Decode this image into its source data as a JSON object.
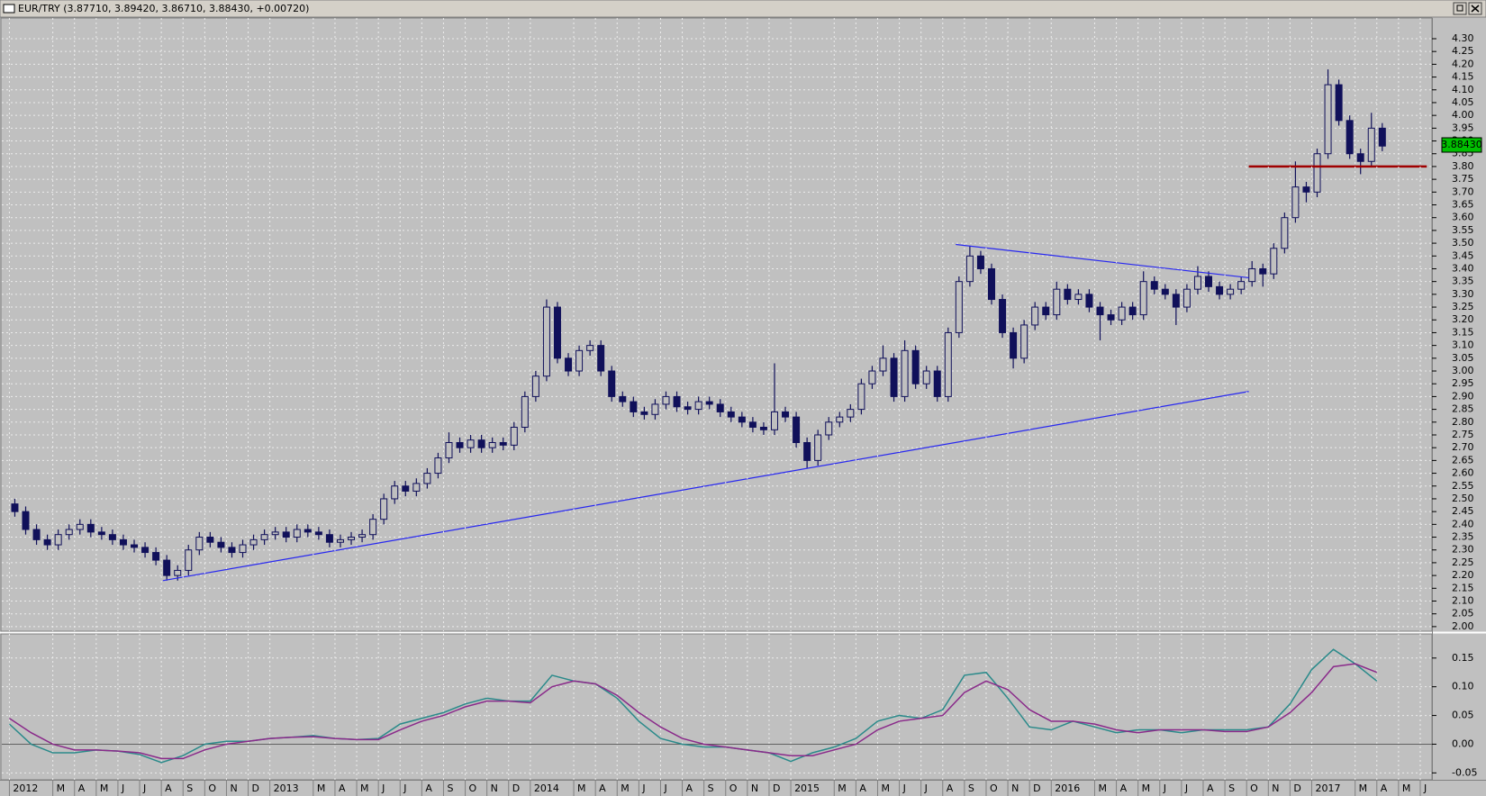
{
  "window": {
    "title": "EUR/TRY (3.87710, 3.89420, 3.86710, 3.88430, +0.00720)"
  },
  "chart_data": [
    {
      "type": "candlestick",
      "color": "#10105a",
      "grid": true,
      "xlim": [
        -0.35,
        65.54
      ],
      "ylim": [
        1.982,
        4.381
      ],
      "yticks": [
        {
          "value": 2,
          "label": "2.00"
        },
        2.05,
        {
          "value": 2.1,
          "label": "2.10"
        },
        2.15,
        {
          "value": 2.2,
          "label": "2.20"
        },
        2.25,
        {
          "value": 2.3,
          "label": "2.30"
        },
        2.35,
        {
          "value": 2.4,
          "label": "2.40"
        },
        2.45,
        {
          "value": 2.5,
          "label": "2.50"
        },
        2.55,
        {
          "value": 2.6,
          "label": "2.60"
        },
        2.65,
        {
          "value": 2.7,
          "label": "2.70"
        },
        2.75,
        {
          "value": 2.8,
          "label": "2.80"
        },
        2.85,
        {
          "value": 2.9,
          "label": "2.90"
        },
        2.95,
        {
          "value": 3,
          "label": "3.00"
        },
        3.05,
        {
          "value": 3.1,
          "label": "3.10"
        },
        3.15,
        {
          "value": 3.2,
          "label": "3.20"
        },
        3.25,
        {
          "value": 3.3,
          "label": "3.30"
        },
        3.35,
        {
          "value": 3.4,
          "label": "3.40"
        },
        3.45,
        {
          "value": 3.5,
          "label": "3.50"
        },
        3.55,
        {
          "value": 3.6,
          "label": "3.60"
        },
        3.65,
        {
          "value": 3.7,
          "label": "3.70"
        },
        3.75,
        {
          "value": 3.8,
          "label": "3.80"
        },
        3.85,
        {
          "value": 3.9,
          "label": "3.90"
        },
        3.95,
        {
          "value": 4,
          "label": "4.00"
        },
        4.05,
        {
          "value": 4.1,
          "label": "4.10"
        },
        4.15,
        {
          "value": 4.2,
          "label": "4.20"
        },
        4.25,
        {
          "value": 4.3,
          "label": "4.30"
        }
      ],
      "x": [
        0.25,
        0.75,
        1.25,
        1.75,
        2.25,
        2.75,
        3.25,
        3.75,
        4.25,
        4.75,
        5.25,
        5.75,
        6.25,
        6.75,
        7.25,
        7.75,
        8.25,
        8.75,
        9.25,
        9.75,
        10.25,
        10.75,
        11.25,
        11.75,
        12.25,
        12.75,
        13.25,
        13.75,
        14.25,
        14.75,
        15.25,
        15.75,
        16.25,
        16.75,
        17.25,
        17.75,
        18.25,
        18.75,
        19.25,
        19.75,
        20.25,
        20.75,
        21.25,
        21.75,
        22.25,
        22.75,
        23.25,
        23.75,
        24.25,
        24.75,
        25.25,
        25.75,
        26.25,
        26.75,
        27.25,
        27.75,
        28.25,
        28.75,
        29.25,
        29.75,
        30.25,
        30.75,
        31.25,
        31.75,
        32.25,
        32.75,
        33.25,
        33.75,
        34.25,
        34.75,
        35.25,
        35.75,
        36.25,
        36.75,
        37.25,
        37.75,
        38.25,
        38.75,
        39.25,
        39.75,
        40.25,
        40.75,
        41.25,
        41.75,
        42.25,
        42.75,
        43.25,
        43.75,
        44.25,
        44.75,
        45.25,
        45.75,
        46.25,
        46.75,
        47.25,
        47.75,
        48.25,
        48.75,
        49.25,
        49.75,
        50.25,
        50.75,
        51.25,
        51.75,
        52.25,
        52.75,
        53.25,
        53.75,
        54.25,
        54.75,
        55.25,
        55.75,
        56.25,
        56.75,
        57.25,
        57.75,
        58.25,
        58.75,
        59.25,
        59.75,
        60.25,
        60.75,
        61.25,
        61.75,
        62.25,
        62.75,
        63.25
      ],
      "open": [
        2.48,
        2.45,
        2.38,
        2.34,
        2.32,
        2.36,
        2.38,
        2.4,
        2.37,
        2.36,
        2.34,
        2.32,
        2.31,
        2.29,
        2.26,
        2.2,
        2.22,
        2.3,
        2.35,
        2.33,
        2.31,
        2.29,
        2.32,
        2.34,
        2.36,
        2.37,
        2.35,
        2.38,
        2.37,
        2.36,
        2.33,
        2.34,
        2.35,
        2.36,
        2.42,
        2.5,
        2.55,
        2.53,
        2.56,
        2.6,
        2.66,
        2.72,
        2.7,
        2.73,
        2.7,
        2.72,
        2.71,
        2.78,
        2.9,
        2.98,
        3.25,
        3.05,
        3.0,
        3.08,
        3.1,
        3.0,
        2.9,
        2.88,
        2.84,
        2.83,
        2.87,
        2.9,
        2.86,
        2.85,
        2.88,
        2.87,
        2.84,
        2.82,
        2.8,
        2.78,
        2.77,
        2.84,
        2.82,
        2.72,
        2.65,
        2.75,
        2.8,
        2.82,
        2.85,
        2.95,
        3.0,
        3.05,
        2.9,
        3.08,
        2.95,
        3.0,
        2.9,
        3.15,
        3.35,
        3.45,
        3.4,
        3.28,
        3.15,
        3.05,
        3.18,
        3.25,
        3.22,
        3.32,
        3.28,
        3.3,
        3.25,
        3.22,
        3.2,
        3.25,
        3.22,
        3.35,
        3.32,
        3.3,
        3.25,
        3.32,
        3.37,
        3.33,
        3.3,
        3.32,
        3.35,
        3.4,
        3.38,
        3.48,
        3.6,
        3.72,
        3.7,
        3.85,
        4.12,
        3.98,
        3.85,
        3.82,
        3.95
      ],
      "high": [
        2.5,
        2.47,
        2.4,
        2.36,
        2.38,
        2.4,
        2.42,
        2.42,
        2.39,
        2.38,
        2.36,
        2.34,
        2.33,
        2.31,
        2.28,
        2.24,
        2.32,
        2.37,
        2.37,
        2.35,
        2.33,
        2.34,
        2.36,
        2.38,
        2.39,
        2.39,
        2.4,
        2.4,
        2.39,
        2.38,
        2.36,
        2.37,
        2.38,
        2.44,
        2.52,
        2.57,
        2.57,
        2.58,
        2.62,
        2.68,
        2.76,
        2.74,
        2.75,
        2.75,
        2.74,
        2.74,
        2.8,
        2.92,
        3.0,
        3.28,
        3.27,
        3.07,
        3.1,
        3.12,
        3.12,
        3.02,
        2.92,
        2.9,
        2.86,
        2.89,
        2.92,
        2.92,
        2.88,
        2.9,
        2.9,
        2.89,
        2.86,
        2.84,
        2.82,
        2.8,
        3.03,
        2.86,
        2.84,
        2.74,
        2.77,
        2.82,
        2.84,
        2.87,
        2.97,
        3.02,
        3.1,
        3.07,
        3.12,
        3.1,
        3.02,
        3.02,
        3.17,
        3.37,
        3.49,
        3.47,
        3.42,
        3.3,
        3.17,
        3.2,
        3.27,
        3.27,
        3.35,
        3.34,
        3.32,
        3.32,
        3.27,
        3.24,
        3.27,
        3.27,
        3.39,
        3.37,
        3.34,
        3.32,
        3.34,
        3.41,
        3.39,
        3.35,
        3.34,
        3.37,
        3.43,
        3.42,
        3.5,
        3.62,
        3.82,
        3.74,
        3.87,
        4.18,
        4.14,
        4.0,
        3.87,
        4.01,
        3.97
      ],
      "low": [
        2.43,
        2.36,
        2.32,
        2.3,
        2.3,
        2.34,
        2.36,
        2.35,
        2.34,
        2.32,
        2.3,
        2.29,
        2.27,
        2.24,
        2.18,
        2.18,
        2.2,
        2.28,
        2.31,
        2.29,
        2.27,
        2.27,
        2.3,
        2.32,
        2.34,
        2.33,
        2.33,
        2.35,
        2.34,
        2.31,
        2.31,
        2.32,
        2.33,
        2.34,
        2.4,
        2.48,
        2.51,
        2.51,
        2.54,
        2.58,
        2.64,
        2.68,
        2.68,
        2.68,
        2.68,
        2.69,
        2.69,
        2.76,
        2.88,
        2.96,
        3.03,
        2.98,
        2.98,
        3.06,
        2.98,
        2.88,
        2.86,
        2.82,
        2.81,
        2.81,
        2.85,
        2.84,
        2.83,
        2.83,
        2.85,
        2.82,
        2.8,
        2.78,
        2.76,
        2.75,
        2.75,
        2.8,
        2.7,
        2.62,
        2.63,
        2.73,
        2.78,
        2.8,
        2.83,
        2.93,
        2.98,
        2.88,
        2.88,
        2.93,
        2.93,
        2.88,
        2.88,
        3.13,
        3.33,
        3.38,
        3.26,
        3.13,
        3.01,
        3.03,
        3.16,
        3.2,
        3.2,
        3.26,
        3.26,
        3.23,
        3.12,
        3.18,
        3.18,
        3.2,
        3.2,
        3.3,
        3.28,
        3.18,
        3.23,
        3.3,
        3.31,
        3.28,
        3.28,
        3.3,
        3.33,
        3.33,
        3.36,
        3.46,
        3.58,
        3.66,
        3.68,
        3.83,
        3.96,
        3.83,
        3.77,
        3.8,
        3.86
      ],
      "close": [
        2.45,
        2.38,
        2.34,
        2.32,
        2.36,
        2.38,
        2.4,
        2.37,
        2.36,
        2.34,
        2.32,
        2.31,
        2.29,
        2.26,
        2.2,
        2.22,
        2.3,
        2.35,
        2.33,
        2.31,
        2.29,
        2.32,
        2.34,
        2.36,
        2.37,
        2.35,
        2.38,
        2.37,
        2.36,
        2.33,
        2.34,
        2.35,
        2.36,
        2.42,
        2.5,
        2.55,
        2.53,
        2.56,
        2.6,
        2.66,
        2.72,
        2.7,
        2.73,
        2.7,
        2.72,
        2.71,
        2.78,
        2.9,
        2.98,
        3.25,
        3.05,
        3.0,
        3.08,
        3.1,
        3.0,
        2.9,
        2.88,
        2.84,
        2.83,
        2.87,
        2.9,
        2.86,
        2.85,
        2.88,
        2.87,
        2.84,
        2.82,
        2.8,
        2.78,
        2.77,
        2.84,
        2.82,
        2.72,
        2.65,
        2.75,
        2.8,
        2.82,
        2.85,
        2.95,
        3.0,
        3.05,
        2.9,
        3.08,
        2.95,
        3.0,
        2.9,
        3.15,
        3.35,
        3.45,
        3.4,
        3.28,
        3.15,
        3.05,
        3.18,
        3.25,
        3.22,
        3.32,
        3.28,
        3.3,
        3.25,
        3.22,
        3.2,
        3.25,
        3.22,
        3.35,
        3.32,
        3.3,
        3.25,
        3.32,
        3.37,
        3.33,
        3.3,
        3.32,
        3.35,
        3.4,
        3.38,
        3.48,
        3.6,
        3.72,
        3.7,
        3.85,
        4.12,
        3.98,
        3.85,
        3.82,
        3.95,
        3.88
      ],
      "trendlines": [
        {
          "x": [
            7.07,
            57.1
          ],
          "y": [
            2.18,
            2.92
          ],
          "color": "#2828f0"
        },
        {
          "x": [
            43.6,
            57.1
          ],
          "y": [
            3.495,
            3.365
          ],
          "color": "#2828f0"
        },
        {
          "x": [
            57.1,
            65.3
          ],
          "y": [
            3.8,
            3.8
          ],
          "color": "#a00000"
        }
      ],
      "last_price": {
        "value": 3.8843,
        "label": "3.88430",
        "color": "#00c000"
      }
    },
    {
      "type": "line",
      "grid": true,
      "xlim": [
        -0.35,
        65.54
      ],
      "ylim": [
        -0.062,
        0.192
      ],
      "yticks": [
        -0.05,
        {
          "value": 0,
          "label": "0.00"
        },
        0.05,
        {
          "value": 0.1,
          "label": "0.10"
        },
        0.15
      ],
      "xticks": [
        {
          "value": 0,
          "label": "2012"
        },
        {
          "value": 2,
          "label": "M"
        },
        {
          "value": 3,
          "label": "A"
        },
        {
          "value": 4,
          "label": "M"
        },
        {
          "value": 5,
          "label": "J"
        },
        {
          "value": 6,
          "label": "J"
        },
        {
          "value": 7,
          "label": "A"
        },
        {
          "value": 8,
          "label": "S"
        },
        {
          "value": 9,
          "label": "O"
        },
        {
          "value": 10,
          "label": "N"
        },
        {
          "value": 11,
          "label": "D"
        },
        {
          "value": 12,
          "label": "2013"
        },
        {
          "value": 14,
          "label": "M"
        },
        {
          "value": 15,
          "label": "A"
        },
        {
          "value": 16,
          "label": "M"
        },
        {
          "value": 17,
          "label": "J"
        },
        {
          "value": 18,
          "label": "J"
        },
        {
          "value": 19,
          "label": "A"
        },
        {
          "value": 20,
          "label": "S"
        },
        {
          "value": 21,
          "label": "O"
        },
        {
          "value": 22,
          "label": "N"
        },
        {
          "value": 23,
          "label": "D"
        },
        {
          "value": 24,
          "label": "2014"
        },
        {
          "value": 26,
          "label": "M"
        },
        {
          "value": 27,
          "label": "A"
        },
        {
          "value": 28,
          "label": "M"
        },
        {
          "value": 29,
          "label": "J"
        },
        {
          "value": 30,
          "label": "J"
        },
        {
          "value": 31,
          "label": "A"
        },
        {
          "value": 32,
          "label": "S"
        },
        {
          "value": 33,
          "label": "O"
        },
        {
          "value": 34,
          "label": "N"
        },
        {
          "value": 35,
          "label": "D"
        },
        {
          "value": 36,
          "label": "2015"
        },
        {
          "value": 38,
          "label": "M"
        },
        {
          "value": 39,
          "label": "A"
        },
        {
          "value": 40,
          "label": "M"
        },
        {
          "value": 41,
          "label": "J"
        },
        {
          "value": 42,
          "label": "J"
        },
        {
          "value": 43,
          "label": "A"
        },
        {
          "value": 44,
          "label": "S"
        },
        {
          "value": 45,
          "label": "O"
        },
        {
          "value": 46,
          "label": "N"
        },
        {
          "value": 47,
          "label": "D"
        },
        {
          "value": 48,
          "label": "2016"
        },
        {
          "value": 50,
          "label": "M"
        },
        {
          "value": 51,
          "label": "A"
        },
        {
          "value": 52,
          "label": "M"
        },
        {
          "value": 53,
          "label": "J"
        },
        {
          "value": 54,
          "label": "J"
        },
        {
          "value": 55,
          "label": "A"
        },
        {
          "value": 56,
          "label": "S"
        },
        {
          "value": 57,
          "label": "O"
        },
        {
          "value": 58,
          "label": "N"
        },
        {
          "value": 59,
          "label": "D"
        },
        {
          "value": 60,
          "label": "2017"
        },
        {
          "value": 62,
          "label": "M"
        },
        {
          "value": 63,
          "label": "A"
        },
        {
          "value": 64,
          "label": "M"
        },
        {
          "value": 65,
          "label": "J"
        }
      ],
      "x": [
        0,
        1,
        2,
        3,
        4,
        5,
        6,
        7,
        8,
        9,
        10,
        11,
        12,
        13,
        14,
        15,
        16,
        17,
        18,
        19,
        20,
        21,
        22,
        23,
        24,
        25,
        26,
        27,
        28,
        29,
        30,
        31,
        32,
        33,
        34,
        35,
        36,
        37,
        38,
        39,
        40,
        41,
        42,
        43,
        44,
        45,
        46,
        47,
        48,
        49,
        50,
        51,
        52,
        53,
        54,
        55,
        56,
        57,
        58,
        59,
        60,
        61,
        62,
        63
      ],
      "series": [
        {
          "color": "#2a8a8a",
          "values": [
            0.035,
            0,
            -0.015,
            -0.015,
            -0.01,
            -0.012,
            -0.018,
            -0.032,
            -0.02,
            0,
            0.005,
            0.005,
            0.01,
            0.012,
            0.015,
            0.01,
            0.008,
            0.01,
            0.035,
            0.045,
            0.055,
            0.07,
            0.08,
            0.075,
            0.075,
            0.12,
            0.11,
            0.105,
            0.08,
            0.04,
            0.01,
            0,
            -0.005,
            -0.005,
            -0.01,
            -0.015,
            -0.03,
            -0.015,
            -0.005,
            0.01,
            0.04,
            0.05,
            0.045,
            0.06,
            0.12,
            0.125,
            0.08,
            0.03,
            0.025,
            0.04,
            0.03,
            0.02,
            0.025,
            0.025,
            0.02,
            0.025,
            0.025,
            0.025,
            0.03,
            0.07,
            0.13,
            0.165,
            0.14,
            0.11
          ]
        },
        {
          "color": "#8a2a8a",
          "values": [
            0.045,
            0.02,
            0,
            -0.01,
            -0.01,
            -0.012,
            -0.015,
            -0.025,
            -0.025,
            -0.01,
            0,
            0.005,
            0.01,
            0.012,
            0.013,
            0.01,
            0.008,
            0.008,
            0.025,
            0.04,
            0.05,
            0.065,
            0.075,
            0.075,
            0.072,
            0.1,
            0.11,
            0.105,
            0.085,
            0.055,
            0.03,
            0.01,
            0,
            -0.005,
            -0.01,
            -0.015,
            -0.02,
            -0.02,
            -0.01,
            0,
            0.025,
            0.04,
            0.045,
            0.05,
            0.09,
            0.11,
            0.095,
            0.06,
            0.04,
            0.04,
            0.035,
            0.025,
            0.02,
            0.025,
            0.025,
            0.025,
            0.022,
            0.022,
            0.03,
            0.055,
            0.09,
            0.135,
            0.14,
            0.125
          ]
        }
      ]
    }
  ]
}
